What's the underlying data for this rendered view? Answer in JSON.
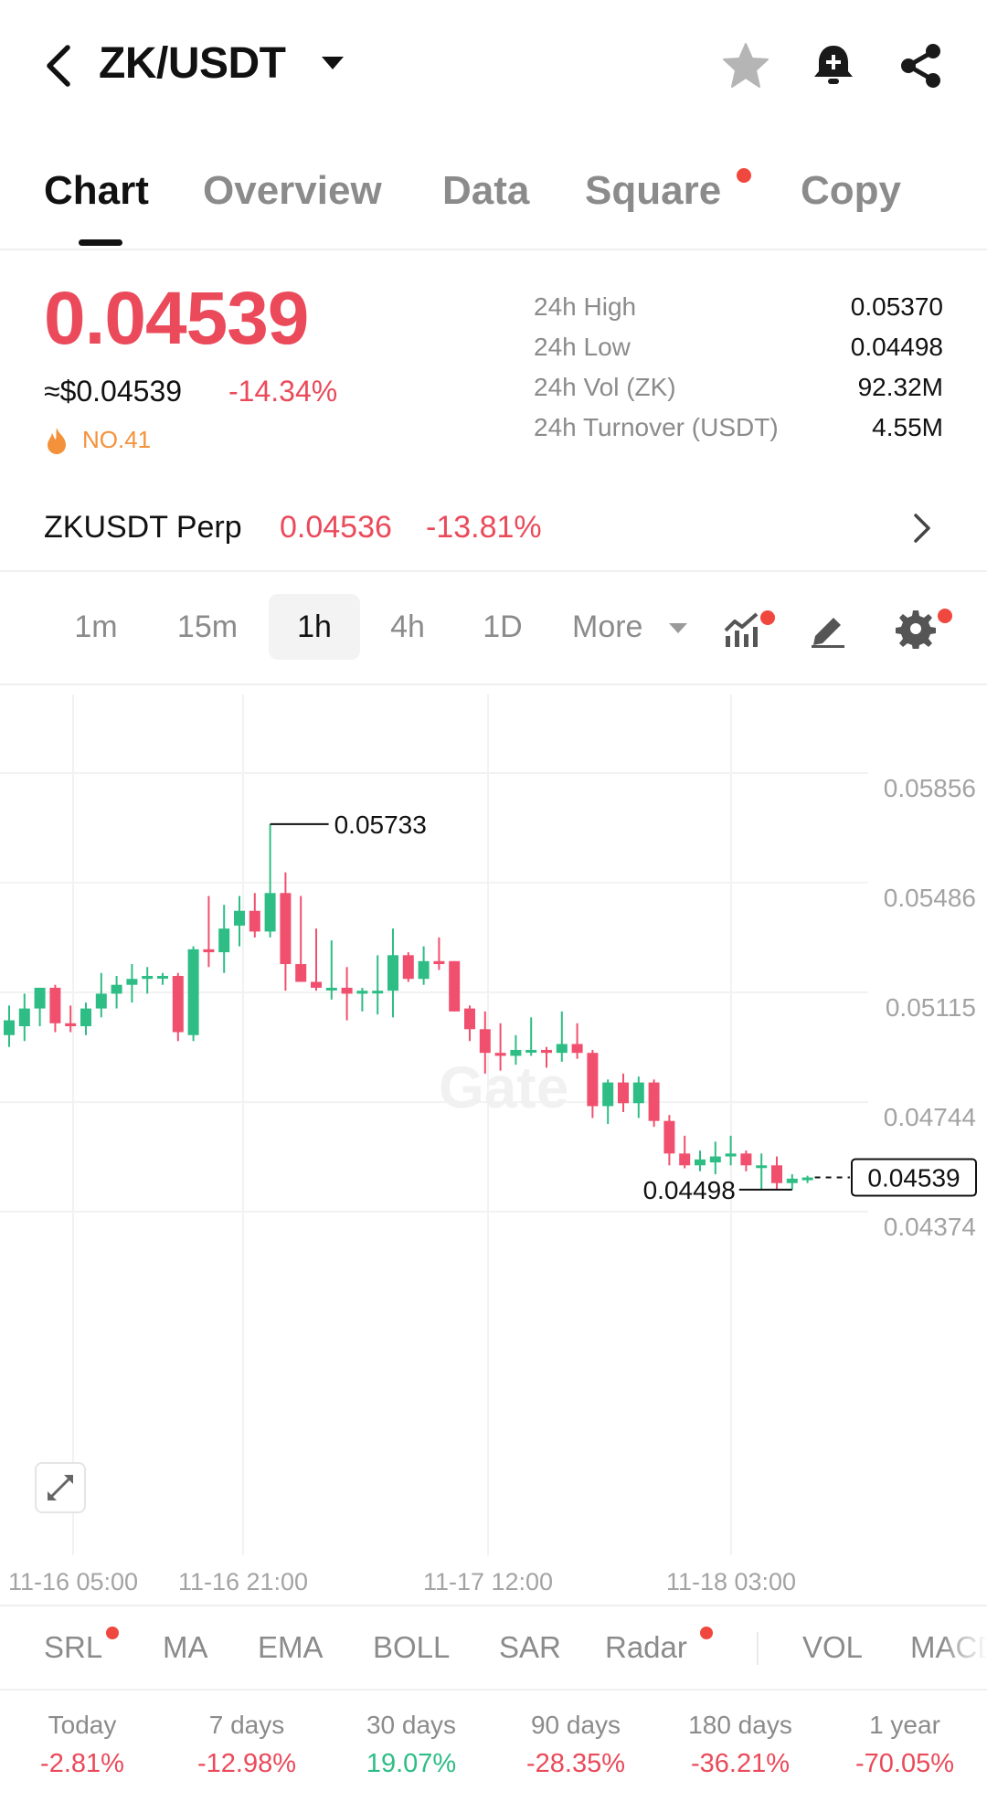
{
  "header": {
    "pair": "ZK/USDT",
    "icons": [
      "back-icon",
      "caret-down-icon",
      "star-icon",
      "bell-plus-icon",
      "share-icon"
    ]
  },
  "tabs": [
    {
      "label": "Chart",
      "active": true
    },
    {
      "label": "Overview",
      "active": false
    },
    {
      "label": "Data",
      "active": false
    },
    {
      "label": "Square",
      "active": false,
      "dot": true
    },
    {
      "label": "Copy",
      "active": false
    }
  ],
  "ticker": {
    "price": "0.04539",
    "usd_price": "≈$0.04539",
    "change": "-14.34%",
    "rank": "NO.41",
    "rank_icon": "flame-icon",
    "stats": [
      {
        "label": "24h High",
        "value": "0.05370"
      },
      {
        "label": "24h Low",
        "value": "0.04498"
      },
      {
        "label": "24h Vol (ZK)",
        "value": "92.32M"
      },
      {
        "label": "24h Turnover (USDT)",
        "value": "4.55M"
      }
    ]
  },
  "perp": {
    "name": "ZKUSDT Perp",
    "price": "0.04536",
    "change": "-13.81%"
  },
  "intervals": {
    "items": [
      "1m",
      "15m",
      "1h",
      "4h",
      "1D"
    ],
    "active": "1h",
    "more_label": "More",
    "tools": [
      "indicator-icon",
      "pencil-draw-icon",
      "settings-gear-icon"
    ]
  },
  "chart_data": {
    "type": "candlestick",
    "interval": "1h",
    "y_axis_labels": [
      "0.05856",
      "0.05486",
      "0.05115",
      "0.04744",
      "0.04374"
    ],
    "x_axis_labels": [
      "11-16 05:00",
      "11-16 21:00",
      "11-17 12:00",
      "11-18 03:00"
    ],
    "high_marker": "0.05733",
    "low_marker": "0.04498",
    "last_price": "0.04539",
    "ylim": [
      0.04374,
      0.05856
    ],
    "watermark": "Gate",
    "colors": {
      "up": "#2ebd85",
      "down": "#f0506e"
    },
    "candles": [
      {
        "o": 0.0502,
        "h": 0.0512,
        "l": 0.0498,
        "c": 0.0507
      },
      {
        "o": 0.0505,
        "h": 0.0516,
        "l": 0.05,
        "c": 0.0511
      },
      {
        "o": 0.0511,
        "h": 0.0518,
        "l": 0.0505,
        "c": 0.0518
      },
      {
        "o": 0.0518,
        "h": 0.0519,
        "l": 0.0503,
        "c": 0.0506
      },
      {
        "o": 0.0506,
        "h": 0.0512,
        "l": 0.0503,
        "c": 0.0505
      },
      {
        "o": 0.0505,
        "h": 0.0513,
        "l": 0.0502,
        "c": 0.0511
      },
      {
        "o": 0.0511,
        "h": 0.0523,
        "l": 0.0508,
        "c": 0.0516
      },
      {
        "o": 0.0516,
        "h": 0.0522,
        "l": 0.0511,
        "c": 0.0519
      },
      {
        "o": 0.0519,
        "h": 0.0526,
        "l": 0.0513,
        "c": 0.0521
      },
      {
        "o": 0.0521,
        "h": 0.0525,
        "l": 0.0516,
        "c": 0.0522
      },
      {
        "o": 0.0522,
        "h": 0.0523,
        "l": 0.0519,
        "c": 0.0522
      },
      {
        "o": 0.0522,
        "h": 0.0523,
        "l": 0.05,
        "c": 0.0503
      },
      {
        "o": 0.0502,
        "h": 0.0532,
        "l": 0.05,
        "c": 0.0531
      },
      {
        "o": 0.0531,
        "h": 0.0549,
        "l": 0.0525,
        "c": 0.053
      },
      {
        "o": 0.053,
        "h": 0.0546,
        "l": 0.0523,
        "c": 0.0538
      },
      {
        "o": 0.0539,
        "h": 0.0549,
        "l": 0.0532,
        "c": 0.0544
      },
      {
        "o": 0.0544,
        "h": 0.055,
        "l": 0.0535,
        "c": 0.0537
      },
      {
        "o": 0.0537,
        "h": 0.05733,
        "l": 0.0535,
        "c": 0.055
      },
      {
        "o": 0.055,
        "h": 0.0557,
        "l": 0.0517,
        "c": 0.0526
      },
      {
        "o": 0.0526,
        "h": 0.0549,
        "l": 0.052,
        "c": 0.052
      },
      {
        "o": 0.052,
        "h": 0.0538,
        "l": 0.0517,
        "c": 0.0518
      },
      {
        "o": 0.0518,
        "h": 0.0534,
        "l": 0.0514,
        "c": 0.0518
      },
      {
        "o": 0.0518,
        "h": 0.0525,
        "l": 0.0507,
        "c": 0.0516
      },
      {
        "o": 0.0516,
        "h": 0.0518,
        "l": 0.051,
        "c": 0.0517
      },
      {
        "o": 0.0517,
        "h": 0.0529,
        "l": 0.0509,
        "c": 0.0517
      },
      {
        "o": 0.0517,
        "h": 0.0538,
        "l": 0.0508,
        "c": 0.0529
      },
      {
        "o": 0.0529,
        "h": 0.053,
        "l": 0.052,
        "c": 0.0521
      },
      {
        "o": 0.0521,
        "h": 0.0532,
        "l": 0.0519,
        "c": 0.0527
      },
      {
        "o": 0.0527,
        "h": 0.0535,
        "l": 0.0524,
        "c": 0.0526
      },
      {
        "o": 0.0527,
        "h": 0.0527,
        "l": 0.051,
        "c": 0.051
      },
      {
        "o": 0.0511,
        "h": 0.0512,
        "l": 0.05,
        "c": 0.0504
      },
      {
        "o": 0.0504,
        "h": 0.051,
        "l": 0.0489,
        "c": 0.0496
      },
      {
        "o": 0.0496,
        "h": 0.0506,
        "l": 0.049,
        "c": 0.0495
      },
      {
        "o": 0.0495,
        "h": 0.0502,
        "l": 0.0492,
        "c": 0.0497
      },
      {
        "o": 0.0497,
        "h": 0.0508,
        "l": 0.0495,
        "c": 0.0497
      },
      {
        "o": 0.0497,
        "h": 0.0498,
        "l": 0.0491,
        "c": 0.0496
      },
      {
        "o": 0.0496,
        "h": 0.051,
        "l": 0.0493,
        "c": 0.0499
      },
      {
        "o": 0.0499,
        "h": 0.0506,
        "l": 0.0494,
        "c": 0.0496
      },
      {
        "o": 0.0496,
        "h": 0.0497,
        "l": 0.0474,
        "c": 0.0478
      },
      {
        "o": 0.0478,
        "h": 0.0487,
        "l": 0.0472,
        "c": 0.0486
      },
      {
        "o": 0.0486,
        "h": 0.0489,
        "l": 0.0476,
        "c": 0.0479
      },
      {
        "o": 0.0479,
        "h": 0.0488,
        "l": 0.0474,
        "c": 0.0486
      },
      {
        "o": 0.0486,
        "h": 0.0487,
        "l": 0.0471,
        "c": 0.0473
      },
      {
        "o": 0.0473,
        "h": 0.0475,
        "l": 0.0458,
        "c": 0.0462
      },
      {
        "o": 0.0462,
        "h": 0.0468,
        "l": 0.0457,
        "c": 0.0458
      },
      {
        "o": 0.0458,
        "h": 0.0463,
        "l": 0.0456,
        "c": 0.046
      },
      {
        "o": 0.0459,
        "h": 0.0466,
        "l": 0.0455,
        "c": 0.0461
      },
      {
        "o": 0.0461,
        "h": 0.0468,
        "l": 0.0458,
        "c": 0.0462
      },
      {
        "o": 0.0462,
        "h": 0.0463,
        "l": 0.0456,
        "c": 0.0458
      },
      {
        "o": 0.0458,
        "h": 0.0462,
        "l": 0.045,
        "c": 0.0458
      },
      {
        "o": 0.0458,
        "h": 0.0461,
        "l": 0.045,
        "c": 0.0452
      },
      {
        "o": 0.0452,
        "h": 0.0455,
        "l": 0.04498,
        "c": 0.04535
      },
      {
        "o": 0.04535,
        "h": 0.04545,
        "l": 0.0452,
        "c": 0.04539
      }
    ]
  },
  "indicators": {
    "items": [
      {
        "label": "SRL",
        "dot": true
      },
      {
        "label": "MA",
        "dot": false
      },
      {
        "label": "EMA",
        "dot": false
      },
      {
        "label": "BOLL",
        "dot": false
      },
      {
        "label": "SAR",
        "dot": false
      },
      {
        "label": "Radar",
        "dot": true
      },
      {
        "label": "VOL",
        "dot": false
      },
      {
        "label": "MACD",
        "dot": false
      }
    ]
  },
  "performance": [
    {
      "label": "Today",
      "value": "-2.81%",
      "color": "#ea4a5a"
    },
    {
      "label": "7 days",
      "value": "-12.98%",
      "color": "#ea4a5a"
    },
    {
      "label": "30 days",
      "value": "19.07%",
      "color": "#2ebd85"
    },
    {
      "label": "90 days",
      "value": "-28.35%",
      "color": "#ea4a5a"
    },
    {
      "label": "180 days",
      "value": "-36.21%",
      "color": "#ea4a5a"
    },
    {
      "label": "1 year",
      "value": "-70.05%",
      "color": "#ea4a5a"
    }
  ]
}
